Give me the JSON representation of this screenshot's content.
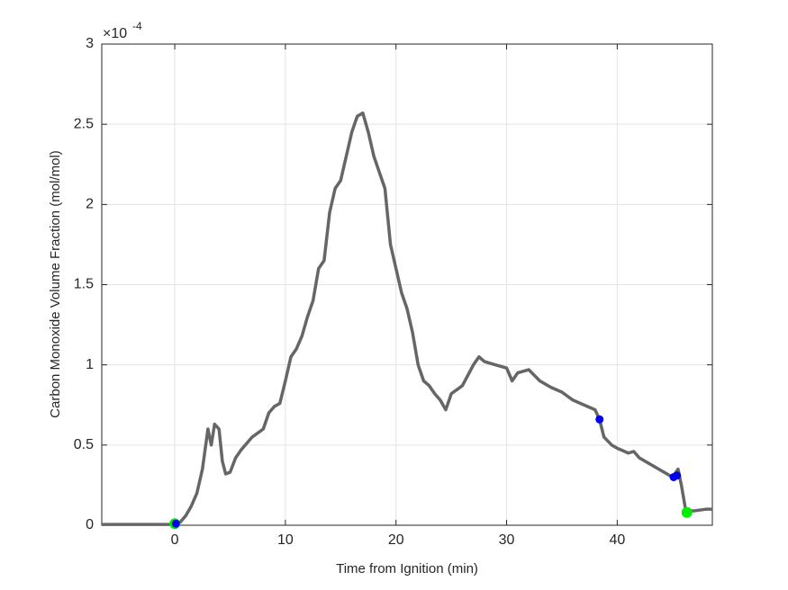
{
  "chart_data": {
    "type": "line",
    "x_label": "Time from Ignition (min)",
    "y_label": "Carbon Monoxide Volume Fraction (mol/mol)",
    "y_multiplier": "×10",
    "y_exponent": "-4",
    "xlim": [
      -6.6,
      48.6
    ],
    "ylim": [
      0,
      3
    ],
    "xticks": [
      0,
      10,
      20,
      30,
      40
    ],
    "yticks": [
      0,
      0.5,
      1,
      1.5,
      2,
      2.5,
      3
    ],
    "grid": true,
    "series": [
      {
        "color": "#666666",
        "style": "line",
        "x": [
          -6.6,
          -3,
          -0.5,
          0,
          0.5,
          1,
          1.5,
          2,
          2.5,
          3,
          3.3,
          3.6,
          4,
          4.3,
          4.6,
          5,
          5.5,
          6,
          7,
          8,
          8.5,
          9,
          9.5,
          10,
          10.5,
          11,
          11.5,
          12,
          12.5,
          13,
          13.5,
          14,
          14.5,
          15,
          15.5,
          16,
          16.5,
          17,
          17.5,
          18,
          18.5,
          19,
          19.5,
          20,
          20.5,
          21,
          21.5,
          22,
          22.5,
          23,
          23.5,
          24,
          24.5,
          25,
          26,
          27,
          27.5,
          28,
          29,
          30,
          30.5,
          31,
          32,
          33,
          34,
          35,
          36,
          37,
          38,
          38.4,
          38.8,
          39.5,
          40,
          41,
          41.5,
          42,
          43,
          44,
          45,
          45.5,
          45.8,
          46.2,
          47,
          48,
          48.6
        ],
        "values": [
          0.005,
          0.005,
          0.005,
          0.01,
          0.02,
          0.06,
          0.12,
          0.2,
          0.35,
          0.6,
          0.5,
          0.63,
          0.6,
          0.4,
          0.32,
          0.33,
          0.42,
          0.47,
          0.55,
          0.6,
          0.7,
          0.74,
          0.76,
          0.9,
          1.05,
          1.1,
          1.18,
          1.3,
          1.4,
          1.6,
          1.65,
          1.95,
          2.1,
          2.15,
          2.3,
          2.45,
          2.55,
          2.57,
          2.45,
          2.3,
          2.2,
          2.1,
          1.75,
          1.6,
          1.45,
          1.35,
          1.2,
          1.0,
          0.9,
          0.87,
          0.82,
          0.78,
          0.72,
          0.82,
          0.87,
          1.0,
          1.05,
          1.02,
          1.0,
          0.98,
          0.9,
          0.95,
          0.97,
          0.9,
          0.86,
          0.83,
          0.78,
          0.75,
          0.72,
          0.66,
          0.55,
          0.5,
          0.48,
          0.45,
          0.46,
          0.42,
          0.38,
          0.34,
          0.3,
          0.35,
          0.25,
          0.09,
          0.09,
          0.1,
          0.1
        ]
      },
      {
        "color": "#00ee00",
        "style": "marker",
        "x": [
          0,
          46.3
        ],
        "values": [
          0.01,
          0.08
        ]
      },
      {
        "color": "#0000ee",
        "style": "marker",
        "x": [
          0.1,
          38.4,
          45.1,
          45.4
        ],
        "values": [
          0.01,
          0.66,
          0.3,
          0.31
        ]
      }
    ]
  }
}
